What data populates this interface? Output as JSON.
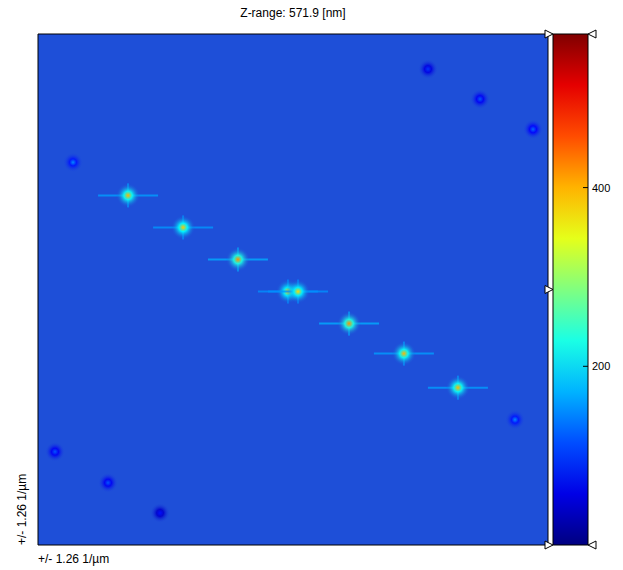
{
  "chart_data": {
    "type": "scatter",
    "title": "Z-range: 571.9 [nm]",
    "xlabel": "+/- 1.26 1/µm",
    "ylabel": "+/- 1.26 1/µm",
    "xlim": [
      -1.26,
      1.26
    ],
    "ylim": [
      -1.26,
      1.26
    ],
    "tick_labels": false,
    "grid": false,
    "x": [
      -0.815,
      -0.543,
      -0.272,
      -0.025,
      0.025,
      0.277,
      0.548,
      0.815,
      -1.087,
      1.097,
      0.924,
      1.186,
      0.667,
      -1.176,
      -0.914,
      -0.657
    ],
    "y": [
      0.464,
      0.306,
      0.148,
      -0.01,
      -0.01,
      -0.168,
      -0.316,
      -0.484,
      0.627,
      -0.642,
      0.939,
      0.79,
      1.087,
      -0.8,
      -0.953,
      -1.102
    ],
    "intensity": [
      400,
      390,
      420,
      380,
      380,
      420,
      400,
      400,
      150,
      150,
      120,
      130,
      100,
      120,
      120,
      80
    ],
    "colorbar": {
      "range": [
        0,
        571.9
      ],
      "ticks": [
        200,
        400
      ]
    }
  }
}
